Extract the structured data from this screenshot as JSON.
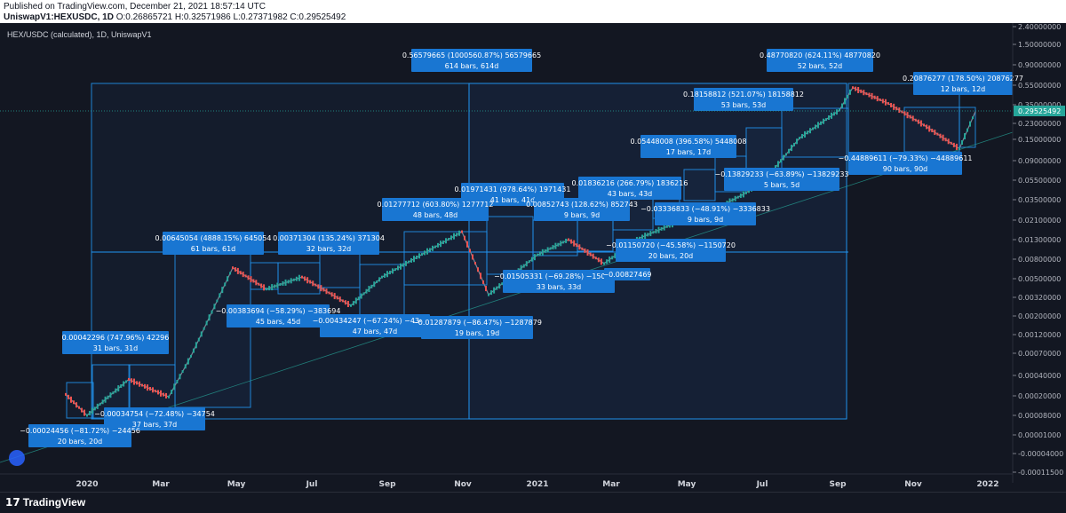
{
  "header": {
    "published": "Published on TradingView.com, December 21, 2021 18:57:14 UTC",
    "symbol": "UniswapV1:HEXUSDC, 1D",
    "ohlc": "O:0.26865721 H:0.32571986 L:0.27371982 C:0.29525492"
  },
  "chart_title": "HEX/USDC (calculated), 1D, UniswapV1",
  "footer": {
    "brand": "TradingView",
    "brand_glyph": "17"
  },
  "colors": {
    "bg": "#131722",
    "box_fill": "#1e3a5f",
    "box_stroke": "#2196f3",
    "label_bg": "#1976d2",
    "up": "#26a69a",
    "down": "#ef5350",
    "last_price": "#26a69a"
  },
  "chart_data": {
    "type": "line",
    "y_scale": "log",
    "y_ticks": [
      "2.40000000",
      "1.50000000",
      "0.90000000",
      "0.55000000",
      "0.35000000",
      "0.23000000",
      "0.15000000",
      "0.09000000",
      "0.05500000",
      "0.03500000",
      "0.02100000",
      "0.01300000",
      "0.00800000",
      "0.00500000",
      "0.00320000",
      "0.00200000",
      "0.00120000",
      "0.00070000",
      "0.00040000",
      "0.00020000",
      "0.00008000",
      "0.00001000",
      "-0.00004000",
      "-0.00011500"
    ],
    "x_ticks": [
      "2020",
      "Mar",
      "May",
      "Jul",
      "Sep",
      "Nov",
      "2021",
      "Mar",
      "May",
      "Jul",
      "Sep",
      "Nov",
      "2022"
    ],
    "last_price": "0.29525492",
    "price_path": [
      [
        0.00021,
        "Dec 2019"
      ],
      [
        8e-05,
        "Dec 2019"
      ],
      [
        0.00035,
        "Jan 2020"
      ],
      [
        0.00019,
        "Feb 2020"
      ],
      [
        0.00065,
        "Mar 2020"
      ],
      [
        0.0065,
        "May 2020"
      ],
      [
        0.0039,
        "Jun 2020"
      ],
      [
        0.0052,
        "Jul 2020"
      ],
      [
        0.0026,
        "Aug 2020"
      ],
      [
        0.0052,
        "Sep 2020"
      ],
      [
        0.0158,
        "Oct 2020"
      ],
      [
        0.0034,
        "Nov 2020"
      ],
      [
        0.0089,
        "Dec 2020"
      ],
      [
        0.013,
        "Jan 2021"
      ],
      [
        0.0072,
        "Feb 2021"
      ],
      [
        0.0135,
        "Mar 2021"
      ],
      [
        0.0195,
        "Apr 2021"
      ],
      [
        0.026,
        "May 2021"
      ],
      [
        0.041,
        "Jun 2021"
      ],
      [
        0.07,
        "Jul 2021"
      ],
      [
        0.155,
        "Aug 2021"
      ],
      [
        0.31,
        "Sep 2021"
      ],
      [
        0.52,
        "Sep 2021"
      ],
      [
        0.36,
        "Oct 2021"
      ],
      [
        0.22,
        "Nov 2021"
      ],
      [
        0.12,
        "Dec 2021"
      ],
      [
        0.3,
        "Dec 2021"
      ]
    ],
    "measurements": [
      {
        "line1": "0.56579665 (1000560.87%) 56579665",
        "line2": "614 bars, 614d"
      },
      {
        "line1": "0.48770820 (624.11%) 48770820",
        "line2": "52 bars, 52d"
      },
      {
        "line1": "0.20876277 (178.50%) 20876277",
        "line2": "12 bars, 12d"
      },
      {
        "line1": "0.18158812 (521.07%) 18158812",
        "line2": "53 bars, 53d"
      },
      {
        "line1": "0.05448008 (396.58%) 5448008",
        "line2": "17 bars, 17d"
      },
      {
        "line1": "−0.13829233 (−63.89%) −13829233",
        "line2": "5 bars, 5d"
      },
      {
        "line1": "−0.44889611 (−79.33%) −44889611",
        "line2": "90 bars, 90d"
      },
      {
        "line1": "0.01836216 (266.79%) 1836216",
        "line2": "43 bars, 43d"
      },
      {
        "line1": "0.01971431 (978.64%) 1971431",
        "line2": "41 bars, 41d"
      },
      {
        "line1": "0.01277712 (603.80%) 1277712",
        "line2": "48 bars, 48d"
      },
      {
        "line1": "0.00852743 (128.62%) 852743",
        "line2": "9 bars, 9d"
      },
      {
        "line1": "−0.03336833 (−48.91%) −3336833",
        "line2": "9 bars, 9d"
      },
      {
        "line1": "−0.01150720 (−45.58%) −1150720",
        "line2": "20 bars, 20d"
      },
      {
        "line1": "0.00645054 (4888.15%) 645054",
        "line2": "61 bars, 61d"
      },
      {
        "line1": "0.00371304 (135.24%) 371304",
        "line2": "32 bars, 32d"
      },
      {
        "line1": "−0.01505331 (−69.28%) −1505331",
        "line2": "33 bars, 33d"
      },
      {
        "line1": "−0.00827469",
        "line2": ""
      },
      {
        "line1": "−0.00383694 (−58.29%) −383694",
        "line2": "45 bars, 45d"
      },
      {
        "line1": "−0.00434247 (−67.24%) −434247",
        "line2": "47 bars, 47d"
      },
      {
        "line1": "−0.01287879 (−86.47%) −1287879",
        "line2": "19 bars, 19d"
      },
      {
        "line1": "0.00042296 (747.96%) 42296",
        "line2": "31 bars, 31d"
      },
      {
        "line1": "−0.00034754 (−72.48%) −34754",
        "line2": "37 bars, 37d"
      },
      {
        "line1": "−0.00024456 (−81.72%) −24456",
        "line2": "20 bars, 20d"
      }
    ]
  }
}
